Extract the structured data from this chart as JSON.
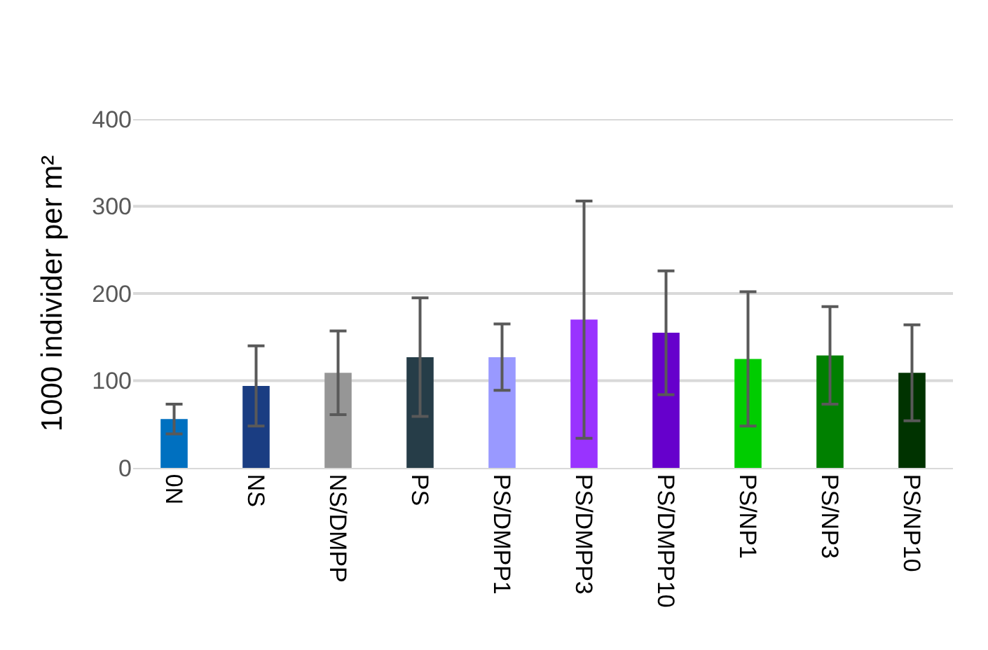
{
  "chart_data": {
    "type": "bar",
    "ylabel": "1000 individer per m²",
    "categories": [
      "0N",
      "NS",
      "NS/DMPP",
      "PS",
      "PS/DMPP1",
      "PS/DMPP3",
      "PS/DMPP10",
      "PS/NP1",
      "PS/NP3",
      "PS/NP10"
    ],
    "values": [
      56,
      94,
      109,
      127,
      127,
      170,
      155,
      125,
      129,
      109
    ],
    "errors": [
      17,
      46,
      48,
      68,
      38,
      136,
      71,
      77,
      56,
      55
    ],
    "colors": [
      "#0070c0",
      "#1a3d82",
      "#969696",
      "#263d48",
      "#9999ff",
      "#9933ff",
      "#6600cc",
      "#00cc00",
      "#008000",
      "#003300"
    ],
    "ylim": [
      0,
      400
    ],
    "yticks": [
      0,
      100,
      200,
      300,
      400
    ],
    "grid": "y"
  }
}
